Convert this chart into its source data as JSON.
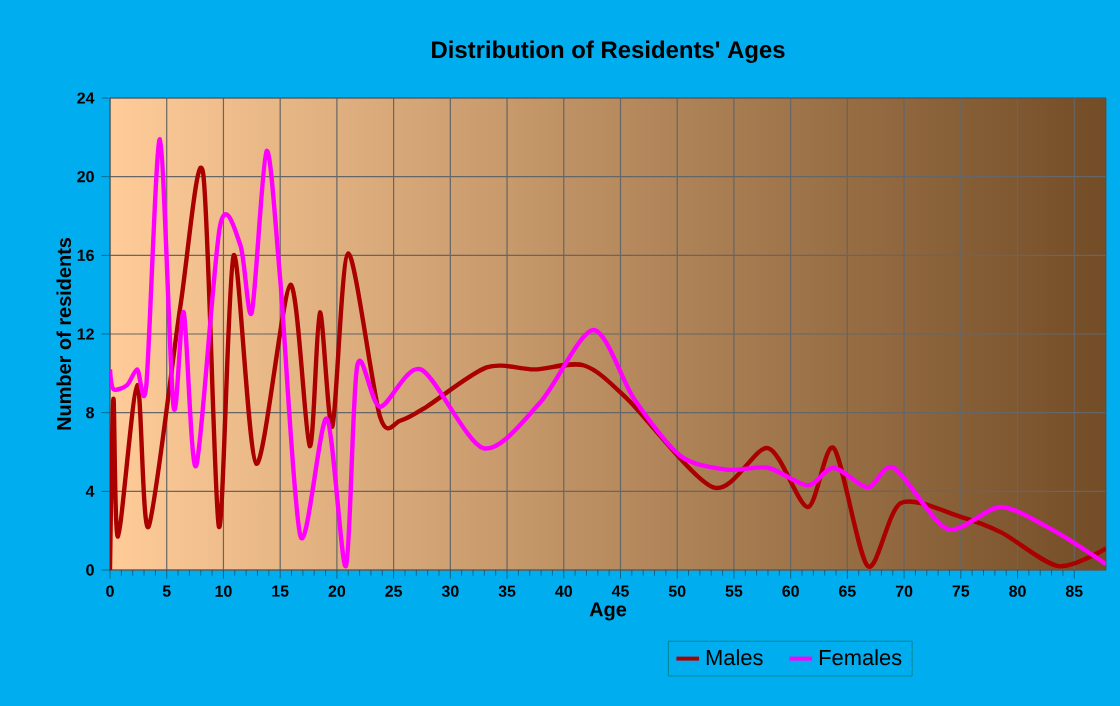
{
  "chart_data": {
    "type": "line",
    "title": "Distribution of Residents' Ages",
    "xlabel": "Age",
    "ylabel": "Number of residents",
    "xlim": [
      0,
      87.8
    ],
    "ylim": [
      0,
      24
    ],
    "xticks": [
      0,
      5,
      10,
      15,
      20,
      25,
      30,
      35,
      40,
      45,
      50,
      55,
      60,
      65,
      70,
      75,
      80,
      85
    ],
    "yticks": [
      0,
      4,
      8,
      12,
      16,
      20,
      24
    ],
    "grid": true,
    "legend": "bottom",
    "marker": "none",
    "line_style": "solid",
    "series": [
      {
        "name": "Males",
        "color": "#aa0000",
        "x": [
          0,
          0.3,
          0.7,
          2.4,
          3.4,
          6.2,
          8.2,
          9.6,
          10.9,
          12.9,
          15.9,
          17.6,
          18.5,
          19.6,
          21,
          23.8,
          25.6,
          27.9,
          33.2,
          37.4,
          41.8,
          45.6,
          53.2,
          58,
          61.5,
          63.8,
          66.8,
          69.7,
          75,
          78.6,
          83.6,
          87.8
        ],
        "values": [
          0,
          8.7,
          1.7,
          9.4,
          2.2,
          13.4,
          20.2,
          2.2,
          16,
          5.4,
          14.5,
          6.3,
          13.1,
          7.3,
          16.1,
          7.8,
          7.6,
          8.3,
          10.3,
          10.2,
          10.4,
          8.7,
          4.2,
          6.2,
          3.2,
          6.2,
          0.2,
          3.4,
          2.7,
          1.9,
          0.2,
          1.1
        ]
      },
      {
        "name": "Females",
        "color": "#ff00ff",
        "x": [
          0,
          0.3,
          1.5,
          2.4,
          3.2,
          4.4,
          5.6,
          6.5,
          7.6,
          9.7,
          11.5,
          12.5,
          13.8,
          15,
          16.8,
          19.1,
          20.8,
          21.8,
          23.8,
          27.4,
          32.9,
          37.9,
          42.6,
          46.2,
          50.3,
          54.4,
          58,
          61.5,
          63.8,
          66.8,
          69.1,
          73.8,
          78.5,
          83.2,
          87.8
        ],
        "values": [
          10.2,
          9.2,
          9.4,
          10.2,
          9.4,
          21.9,
          8.3,
          13.1,
          5.3,
          17.5,
          16.5,
          13.1,
          21.3,
          14.8,
          1.7,
          7.7,
          0.2,
          10.4,
          8.3,
          10.2,
          6.2,
          8.5,
          12.2,
          8.7,
          5.8,
          5.1,
          5.2,
          4.3,
          5.2,
          4.2,
          5.2,
          2.1,
          3.2,
          2,
          0.3
        ]
      }
    ]
  }
}
